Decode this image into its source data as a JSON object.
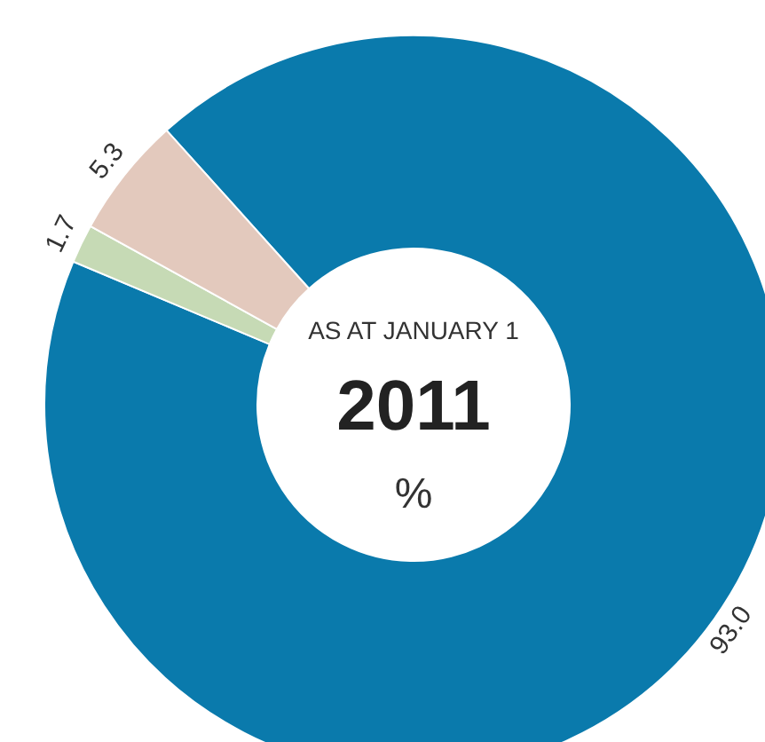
{
  "chart_data": {
    "type": "donut",
    "subtitle": "AS AT JANUARY 1",
    "title": "2011",
    "annotations": [
      "%"
    ],
    "categories": [
      null,
      null,
      null
    ],
    "values": [
      93.0,
      1.7,
      5.3
    ],
    "value_labels": [
      "93.0",
      "1.7",
      "5.3"
    ],
    "colors": [
      "#0a7aac",
      "#c6dab5",
      "#e3c9bd"
    ]
  }
}
